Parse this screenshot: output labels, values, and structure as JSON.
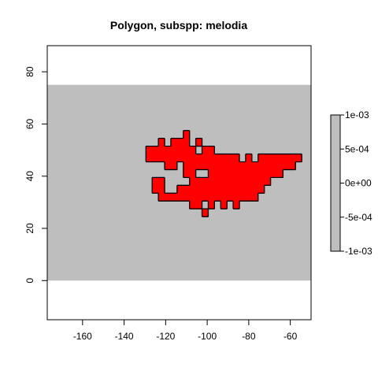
{
  "chart_data": {
    "type": "heatmap",
    "title": "Polygon, subspp: melodia",
    "xlabel": "",
    "ylabel": "",
    "xlim": [
      -177,
      -50
    ],
    "ylim": [
      -15,
      90
    ],
    "x_ticks": [
      -160,
      -140,
      -120,
      -100,
      -80,
      -60
    ],
    "y_ticks": [
      0,
      20,
      40,
      60,
      80
    ],
    "x_tick_labels": [
      "-160",
      "-140",
      "-120",
      "-100",
      "-80",
      "-60"
    ],
    "y_tick_labels": [
      "0",
      "20",
      "40",
      "60",
      "80"
    ],
    "raster_extent": {
      "x": [
        -177,
        -50
      ],
      "y": [
        0,
        75
      ]
    },
    "raster_value": 0,
    "raster_color": "#bebebe",
    "polygon_fill": "#ff0000",
    "polygon_outline": "#000000",
    "polygon_cells": [
      [
        -110,
        56
      ],
      [
        -122,
        53
      ],
      [
        -116,
        53
      ],
      [
        -113,
        53
      ],
      [
        -110,
        53
      ],
      [
        -104,
        53
      ],
      [
        -128,
        50
      ],
      [
        -125,
        50
      ],
      [
        -122,
        50
      ],
      [
        -119,
        50
      ],
      [
        -116,
        50
      ],
      [
        -113,
        50
      ],
      [
        -110,
        50
      ],
      [
        -107,
        50
      ],
      [
        -101,
        50
      ],
      [
        -98,
        50
      ],
      [
        -128,
        47
      ],
      [
        -125,
        47
      ],
      [
        -122,
        47
      ],
      [
        -119,
        47
      ],
      [
        -116,
        47
      ],
      [
        -113,
        47
      ],
      [
        -110,
        47
      ],
      [
        -107,
        47
      ],
      [
        -104,
        47
      ],
      [
        -101,
        47
      ],
      [
        -98,
        47
      ],
      [
        -95,
        47
      ],
      [
        -92,
        47
      ],
      [
        -89,
        47
      ],
      [
        -86,
        47
      ],
      [
        -80,
        47
      ],
      [
        -74,
        47
      ],
      [
        -71,
        47
      ],
      [
        -68,
        47
      ],
      [
        -65,
        47
      ],
      [
        -62,
        47
      ],
      [
        -59,
        47
      ],
      [
        -56,
        47
      ],
      [
        -119,
        44
      ],
      [
        -116,
        44
      ],
      [
        -110,
        44
      ],
      [
        -107,
        44
      ],
      [
        -104,
        44
      ],
      [
        -101,
        44
      ],
      [
        -98,
        44
      ],
      [
        -95,
        44
      ],
      [
        -92,
        44
      ],
      [
        -89,
        44
      ],
      [
        -86,
        44
      ],
      [
        -83,
        44
      ],
      [
        -80,
        44
      ],
      [
        -77,
        44
      ],
      [
        -74,
        44
      ],
      [
        -71,
        44
      ],
      [
        -68,
        44
      ],
      [
        -65,
        44
      ],
      [
        -62,
        44
      ],
      [
        -59,
        44
      ],
      [
        -110,
        41
      ],
      [
        -107,
        41
      ],
      [
        -98,
        41
      ],
      [
        -95,
        41
      ],
      [
        -92,
        41
      ],
      [
        -89,
        41
      ],
      [
        -86,
        41
      ],
      [
        -83,
        41
      ],
      [
        -80,
        41
      ],
      [
        -77,
        41
      ],
      [
        -74,
        41
      ],
      [
        -71,
        41
      ],
      [
        -68,
        41
      ],
      [
        -65,
        41
      ],
      [
        -125,
        38
      ],
      [
        -122,
        38
      ],
      [
        -107,
        38
      ],
      [
        -104,
        38
      ],
      [
        -101,
        38
      ],
      [
        -98,
        38
      ],
      [
        -95,
        38
      ],
      [
        -92,
        38
      ],
      [
        -89,
        38
      ],
      [
        -86,
        38
      ],
      [
        -83,
        38
      ],
      [
        -80,
        38
      ],
      [
        -77,
        38
      ],
      [
        -74,
        38
      ],
      [
        -71,
        38
      ],
      [
        -125,
        35
      ],
      [
        -122,
        35
      ],
      [
        -113,
        35
      ],
      [
        -110,
        35
      ],
      [
        -107,
        35
      ],
      [
        -104,
        35
      ],
      [
        -101,
        35
      ],
      [
        -98,
        35
      ],
      [
        -95,
        35
      ],
      [
        -92,
        35
      ],
      [
        -89,
        35
      ],
      [
        -86,
        35
      ],
      [
        -83,
        35
      ],
      [
        -80,
        35
      ],
      [
        -77,
        35
      ],
      [
        -74,
        35
      ],
      [
        -122,
        32
      ],
      [
        -119,
        32
      ],
      [
        -116,
        32
      ],
      [
        -113,
        32
      ],
      [
        -110,
        32
      ],
      [
        -107,
        32
      ],
      [
        -104,
        32
      ],
      [
        -101,
        32
      ],
      [
        -98,
        32
      ],
      [
        -95,
        32
      ],
      [
        -92,
        32
      ],
      [
        -89,
        32
      ],
      [
        -86,
        32
      ],
      [
        -83,
        32
      ],
      [
        -80,
        32
      ],
      [
        -77,
        32
      ],
      [
        -107,
        29
      ],
      [
        -104,
        29
      ],
      [
        -98,
        29
      ],
      [
        -92,
        29
      ],
      [
        -86,
        29
      ],
      [
        -101,
        26
      ]
    ],
    "legend": {
      "type": "colorbar",
      "min": -0.001,
      "max": 0.001,
      "ticks": [
        -0.001,
        -0.0005,
        0,
        0.0005,
        0.001
      ],
      "tick_labels": [
        "-1e-03",
        "-5e-04",
        "0e+00",
        "5e-04",
        "1e-03"
      ],
      "color": "#bebebe",
      "placement": "right"
    },
    "grid": false
  }
}
